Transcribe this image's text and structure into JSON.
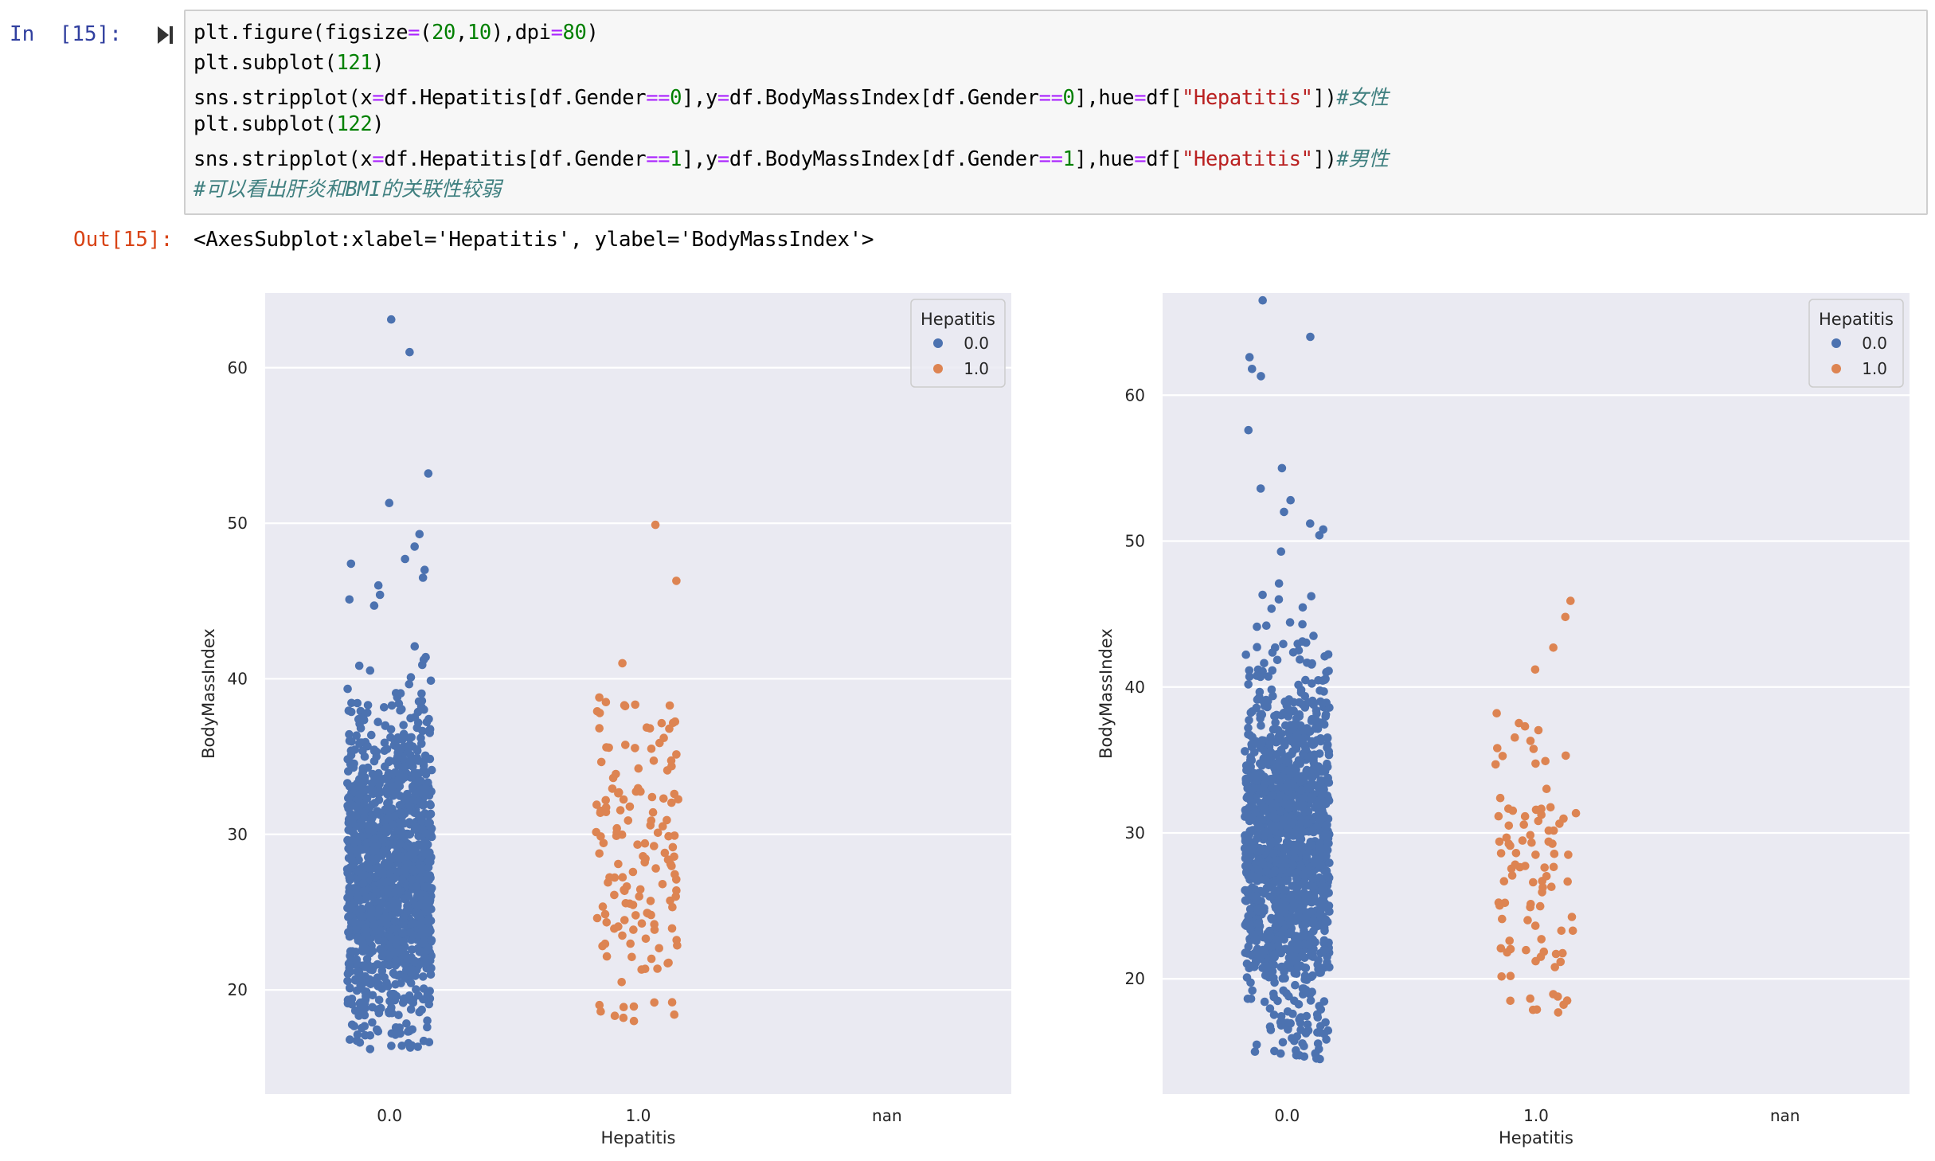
{
  "cell": {
    "in_prompt": "In  [15]:",
    "out_prompt": "Out[15]:",
    "output_text": "<AxesSubplot:xlabel='Hepatitis', ylabel='BodyMassIndex'>",
    "code_lines": [
      [
        {
          "t": "plt.figure(figsize"
        },
        {
          "t": "=",
          "c": "op"
        },
        {
          "t": "("
        },
        {
          "t": "20",
          "c": "num"
        },
        {
          "t": ","
        },
        {
          "t": "10",
          "c": "num"
        },
        {
          "t": "),dpi"
        },
        {
          "t": "=",
          "c": "op"
        },
        {
          "t": "80",
          "c": "num"
        },
        {
          "t": ")"
        }
      ],
      [
        {
          "t": "plt.subplot("
        },
        {
          "t": "121",
          "c": "num"
        },
        {
          "t": ")"
        }
      ],
      [
        {
          "t": "sns.stripplot(x"
        },
        {
          "t": "=",
          "c": "op"
        },
        {
          "t": "df.Hepatitis[df.Gender"
        },
        {
          "t": "==",
          "c": "op"
        },
        {
          "t": "0",
          "c": "num"
        },
        {
          "t": "],y"
        },
        {
          "t": "=",
          "c": "op"
        },
        {
          "t": "df.BodyMassIndex[df.Gender"
        },
        {
          "t": "==",
          "c": "op"
        },
        {
          "t": "0",
          "c": "num"
        },
        {
          "t": "],hue"
        },
        {
          "t": "=",
          "c": "op"
        },
        {
          "t": "df["
        },
        {
          "t": "\"Hepatitis\"",
          "c": "str"
        },
        {
          "t": "])"
        },
        {
          "t": "#女性",
          "c": "cmt"
        }
      ],
      [
        {
          "t": "plt.subplot("
        },
        {
          "t": "122",
          "c": "num"
        },
        {
          "t": ")"
        }
      ],
      [
        {
          "t": "sns.stripplot(x"
        },
        {
          "t": "=",
          "c": "op"
        },
        {
          "t": "df.Hepatitis[df.Gender"
        },
        {
          "t": "==",
          "c": "op"
        },
        {
          "t": "1",
          "c": "num"
        },
        {
          "t": "],y"
        },
        {
          "t": "=",
          "c": "op"
        },
        {
          "t": "df.BodyMassIndex[df.Gender"
        },
        {
          "t": "==",
          "c": "op"
        },
        {
          "t": "1",
          "c": "num"
        },
        {
          "t": "],hue"
        },
        {
          "t": "=",
          "c": "op"
        },
        {
          "t": "df["
        },
        {
          "t": "\"Hepatitis\"",
          "c": "str"
        },
        {
          "t": "])"
        },
        {
          "t": "#男性",
          "c": "cmt"
        }
      ],
      [
        {
          "t": "#可以看出肝炎和BMI的关联性较弱",
          "c": "cmt"
        }
      ]
    ]
  },
  "colors": {
    "series_0": "#4c72b0",
    "series_1": "#dd8452",
    "plot_bg": "#eaeaf2",
    "grid": "#ffffff",
    "tick_text": "#262626"
  },
  "chart_data": [
    {
      "type": "scatter",
      "subtype": "stripplot",
      "subplot": "121",
      "categories": [
        "0.0",
        "1.0",
        "nan"
      ],
      "xlabel": "Hepatitis",
      "ylabel": "BodyMassIndex",
      "ylim": [
        13.3,
        64.8
      ],
      "yticks": [
        20,
        30,
        40,
        50,
        60
      ],
      "grid": true,
      "legend": {
        "title": "Hepatitis",
        "placement": "top-right",
        "entries": [
          "0.0",
          "1.0"
        ]
      },
      "series": [
        {
          "name": "0.0",
          "category": "0.0",
          "min": 16.2,
          "max": 63.1,
          "approx_count": 1400,
          "outliers": [
            63.1,
            61.0,
            53.2,
            51.3,
            49.3,
            48.5,
            47.7,
            47.4,
            47.0,
            46.5,
            46.0,
            45.4,
            45.1,
            44.7
          ]
        },
        {
          "name": "1.0",
          "category": "1.0",
          "min": 18.0,
          "max": 49.9,
          "approx_count": 150,
          "outliers": [
            49.9,
            46.3,
            41.0,
            38.8,
            38.5
          ]
        }
      ]
    },
    {
      "type": "scatter",
      "subtype": "stripplot",
      "subplot": "122",
      "categories": [
        "0.0",
        "1.0",
        "nan"
      ],
      "xlabel": "Hepatitis",
      "ylabel": "BodyMassIndex",
      "ylim": [
        12.1,
        67.0
      ],
      "yticks": [
        20,
        30,
        40,
        50,
        60
      ],
      "grid": true,
      "legend": {
        "title": "Hepatitis",
        "placement": "top-right",
        "entries": [
          "0.0",
          "1.0"
        ]
      },
      "series": [
        {
          "name": "0.0",
          "category": "0.0",
          "min": 14.5,
          "max": 66.5,
          "approx_count": 1500,
          "outliers": [
            66.5,
            64.0,
            62.6,
            61.8,
            61.3,
            57.6,
            55.0,
            53.6,
            52.8,
            52.0,
            51.2,
            50.8
          ]
        },
        {
          "name": "1.0",
          "category": "1.0",
          "min": 17.7,
          "max": 45.9,
          "approx_count": 100,
          "outliers": [
            45.9,
            44.8,
            42.7,
            41.2,
            38.2
          ]
        }
      ]
    }
  ]
}
